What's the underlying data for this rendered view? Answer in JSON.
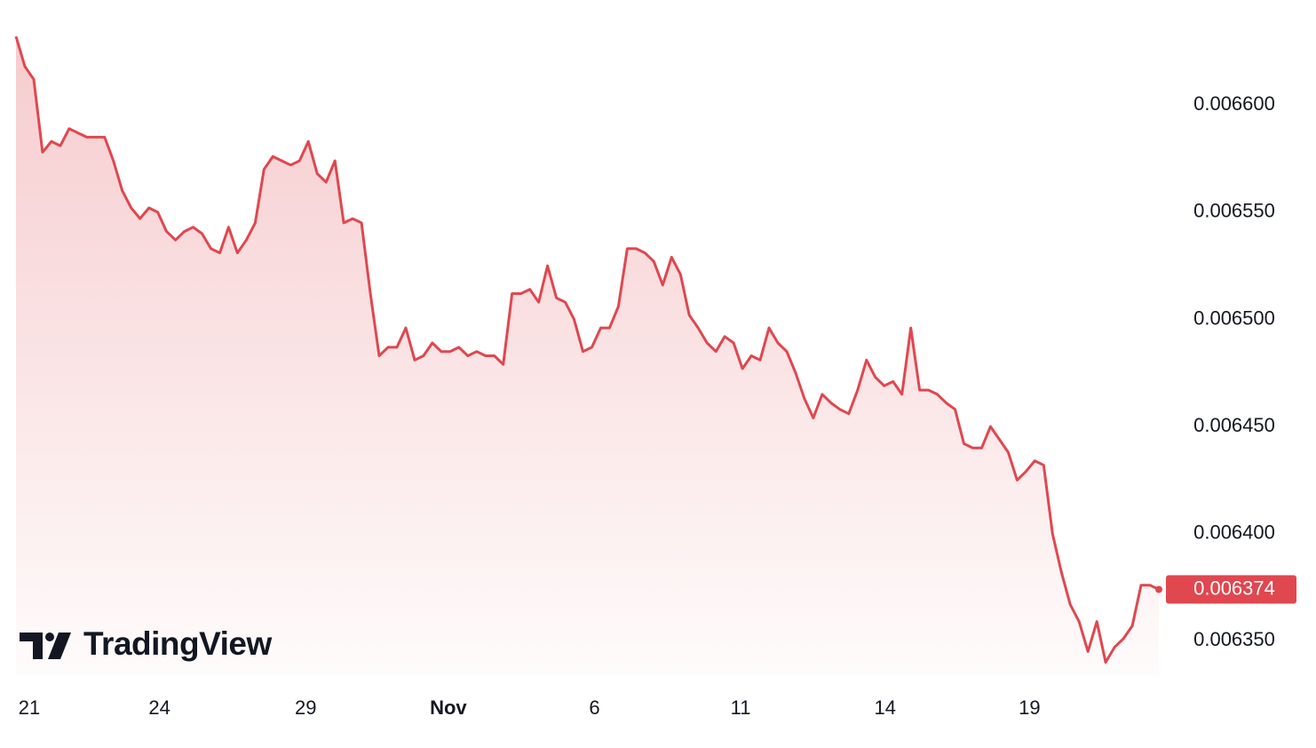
{
  "chart_data": {
    "type": "area",
    "watermark": "TradingView",
    "x": [
      0,
      1,
      2,
      3,
      4,
      5,
      6,
      7,
      8,
      9,
      10,
      11,
      12,
      13,
      14,
      15,
      16,
      17,
      18,
      19,
      20,
      21,
      22,
      23,
      24,
      25,
      26,
      27,
      28,
      29,
      30,
      31,
      32,
      33,
      34,
      35,
      36,
      37,
      38,
      39,
      40,
      41,
      42,
      43,
      44,
      45,
      46,
      47,
      48,
      49,
      50,
      51,
      52,
      53,
      54,
      55,
      56,
      57,
      58,
      59,
      60,
      61,
      62,
      63,
      64,
      65,
      66,
      67,
      68,
      69,
      70,
      71,
      72,
      73,
      74,
      75,
      76,
      77,
      78,
      79,
      80,
      81,
      82,
      83,
      84,
      85,
      86,
      87,
      88,
      89,
      90,
      91,
      92,
      93,
      94,
      95,
      96,
      97,
      98,
      99,
      100,
      101,
      102,
      103,
      104,
      105,
      106,
      107,
      108,
      109,
      110,
      111,
      112,
      113,
      114,
      115,
      116,
      117,
      118,
      119,
      120,
      121,
      122,
      123,
      124,
      125,
      126,
      127,
      128,
      129
    ],
    "series": [
      {
        "color": "#e0474f",
        "values": [
          0.006632,
          0.006618,
          0.006612,
          0.006578,
          0.006583,
          0.006581,
          0.006589,
          0.006587,
          0.006585,
          0.006585,
          0.006585,
          0.006574,
          0.00656,
          0.006552,
          0.006547,
          0.006552,
          0.00655,
          0.006541,
          0.006537,
          0.006541,
          0.006543,
          0.00654,
          0.006533,
          0.006531,
          0.006543,
          0.006531,
          0.006537,
          0.006545,
          0.00657,
          0.006576,
          0.006574,
          0.006572,
          0.006574,
          0.006583,
          0.006568,
          0.006564,
          0.006574,
          0.006545,
          0.006547,
          0.006545,
          0.006512,
          0.006483,
          0.006487,
          0.006487,
          0.006496,
          0.006481,
          0.006483,
          0.006489,
          0.006485,
          0.006485,
          0.006487,
          0.006483,
          0.006485,
          0.006483,
          0.006483,
          0.006479,
          0.006512,
          0.006512,
          0.006514,
          0.006508,
          0.006525,
          0.00651,
          0.006508,
          0.0065,
          0.006485,
          0.006487,
          0.006496,
          0.006496,
          0.006506,
          0.006533,
          0.006533,
          0.006531,
          0.006527,
          0.006516,
          0.006529,
          0.006521,
          0.006502,
          0.006496,
          0.006489,
          0.006485,
          0.006492,
          0.006489,
          0.006477,
          0.006483,
          0.006481,
          0.006496,
          0.006489,
          0.006485,
          0.006475,
          0.006463,
          0.006454,
          0.006465,
          0.006461,
          0.006458,
          0.006456,
          0.006467,
          0.006481,
          0.006473,
          0.006469,
          0.006471,
          0.006465,
          0.006496,
          0.006467,
          0.006467,
          0.006465,
          0.006461,
          0.006458,
          0.006442,
          0.00644,
          0.00644,
          0.00645,
          0.006444,
          0.006438,
          0.006425,
          0.006429,
          0.006434,
          0.006432,
          0.0064,
          0.006382,
          0.006367,
          0.006359,
          0.006345,
          0.006359,
          0.00634,
          0.006347,
          0.006351,
          0.006357,
          0.006376,
          0.006376,
          0.006374
        ]
      }
    ],
    "xlim": [
      0,
      129
    ],
    "xticks": [
      {
        "value": 1.5,
        "label": "21"
      },
      {
        "value": 16.2,
        "label": "24"
      },
      {
        "value": 32.7,
        "label": "29"
      },
      {
        "value": 48.8,
        "label": "Nov"
      },
      {
        "value": 65.3,
        "label": "6"
      },
      {
        "value": 81.8,
        "label": "11"
      },
      {
        "value": 98.1,
        "label": "14"
      },
      {
        "value": 114.4,
        "label": "19"
      }
    ],
    "ylim": [
      0.006334,
      0.006649
    ],
    "yticks": [
      {
        "value": 0.00635,
        "label": "0.006350"
      },
      {
        "value": 0.0064,
        "label": "0.006400"
      },
      {
        "value": 0.00645,
        "label": "0.006450"
      },
      {
        "value": 0.0065,
        "label": "0.006500"
      },
      {
        "value": 0.00655,
        "label": "0.006550"
      },
      {
        "value": 0.0066,
        "label": "0.006600"
      }
    ],
    "grid": false
  }
}
